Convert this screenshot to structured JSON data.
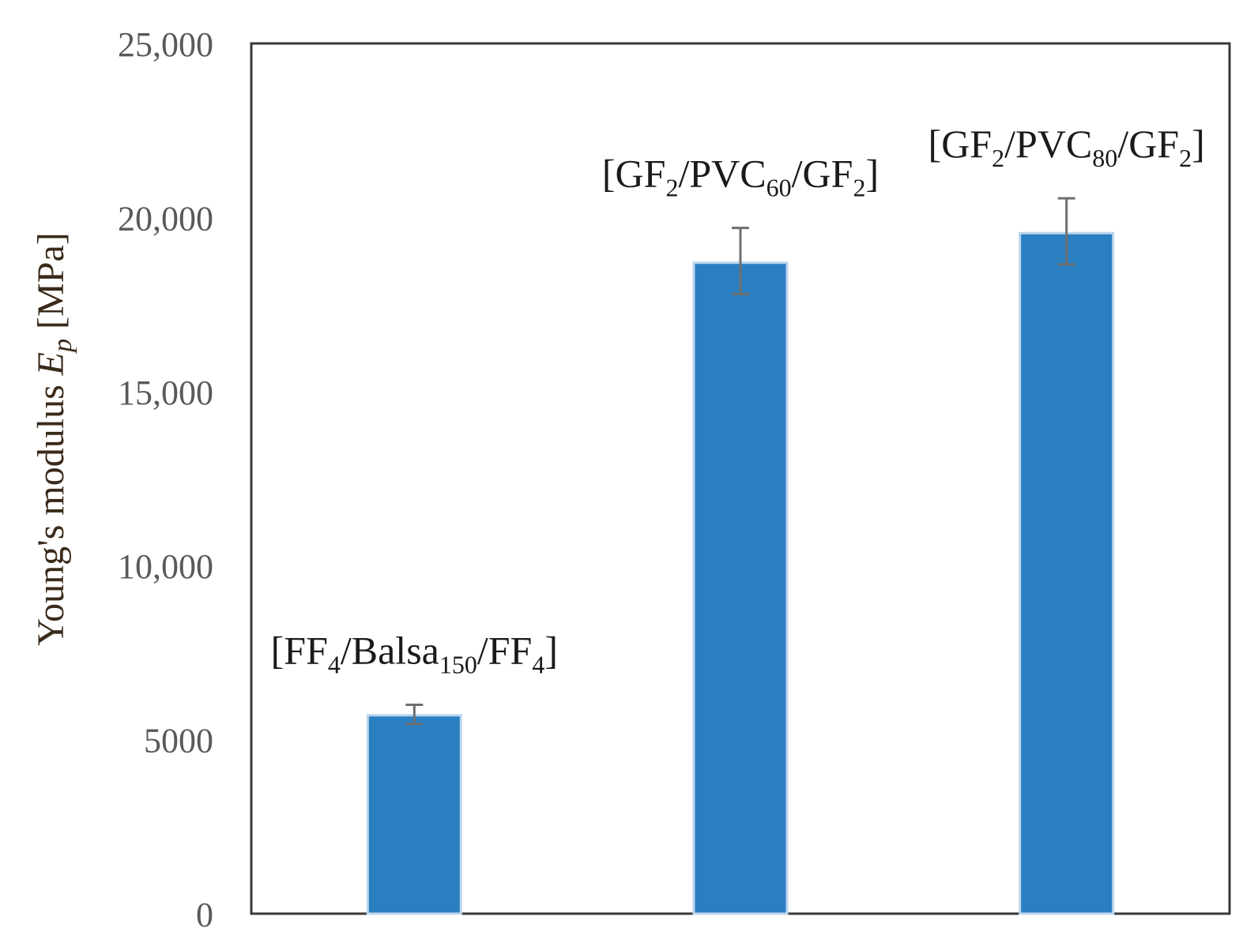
{
  "chart_data": {
    "type": "bar",
    "categories": [
      "[FF4/Balsa150/FF4]",
      "[GF2/PVC60/GF2]",
      "[GF2/PVC80/GF2]"
    ],
    "category_label_parts": [
      [
        {
          "t": "[FF",
          "sub": false
        },
        {
          "t": "4",
          "sub": true
        },
        {
          "t": "/Balsa",
          "sub": false
        },
        {
          "t": "150",
          "sub": true
        },
        {
          "t": "/FF",
          "sub": false
        },
        {
          "t": "4",
          "sub": true
        },
        {
          "t": "]",
          "sub": false
        }
      ],
      [
        {
          "t": "[GF",
          "sub": false
        },
        {
          "t": "2",
          "sub": true
        },
        {
          "t": "/PVC",
          "sub": false
        },
        {
          "t": "60",
          "sub": true
        },
        {
          "t": "/GF",
          "sub": false
        },
        {
          "t": "2",
          "sub": true
        },
        {
          "t": "]",
          "sub": false
        }
      ],
      [
        {
          "t": "[GF",
          "sub": false
        },
        {
          "t": "2",
          "sub": true
        },
        {
          "t": "/PVC",
          "sub": false
        },
        {
          "t": "80",
          "sub": true
        },
        {
          "t": "/GF",
          "sub": false
        },
        {
          "t": "2",
          "sub": true
        },
        {
          "t": "]",
          "sub": false
        }
      ]
    ],
    "values": [
      5700,
      18700,
      19550
    ],
    "error_bars": [
      {
        "low": 5450,
        "high": 6000
      },
      {
        "low": 17800,
        "high": 19700
      },
      {
        "low": 18650,
        "high": 20550
      }
    ],
    "title": "",
    "xlabel": "",
    "ylabel_parts": [
      {
        "t": "Young's modulus ",
        "italic": false,
        "sub": false
      },
      {
        "t": "E",
        "italic": true,
        "sub": false
      },
      {
        "t": "p",
        "italic": true,
        "sub": true
      },
      {
        "t": " [MPa]",
        "italic": false,
        "sub": false
      }
    ],
    "ylim": [
      0,
      25000
    ],
    "yticks": [
      0,
      5000,
      10000,
      15000,
      20000,
      25000
    ],
    "ytick_labels": [
      "0",
      "5000",
      "10,000",
      "15,000",
      "20,000",
      "25,000"
    ],
    "grid": false,
    "legend": "none",
    "colors": {
      "bar": "#2a7fc0",
      "bar_edge": "#bcd6ee",
      "error_bar": "#6f6f6f",
      "axis": "#3a3a3a",
      "tick_label": "#595959",
      "ylabel": "#3a2a1a"
    }
  }
}
